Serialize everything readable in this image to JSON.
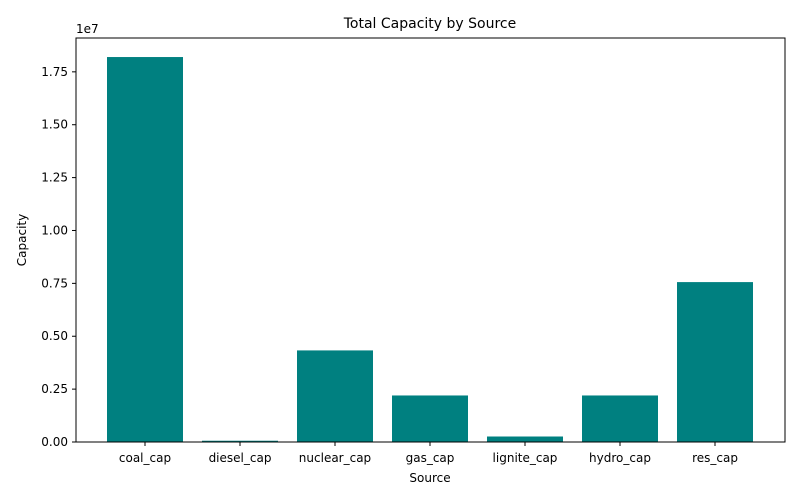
{
  "chart_data": {
    "type": "bar",
    "title": "Total Capacity by Source",
    "xlabel": "Source",
    "ylabel": "Capacity",
    "scale_label": "1e7",
    "categories": [
      "coal_cap",
      "diesel_cap",
      "nuclear_cap",
      "gas_cap",
      "lignite_cap",
      "hydro_cap",
      "res_cap"
    ],
    "values": [
      18200000,
      60000,
      4330000,
      2200000,
      260000,
      2200000,
      7560000
    ],
    "ylim": [
      0,
      19100000
    ],
    "yticks": [
      0,
      2500000,
      5000000,
      7500000,
      10000000,
      12500000,
      15000000,
      17500000
    ],
    "ytick_labels": [
      "0.00",
      "0.25",
      "0.50",
      "0.75",
      "1.00",
      "1.25",
      "1.50",
      "1.75"
    ],
    "bar_color": "#008080",
    "grid": false,
    "legend": false
  }
}
